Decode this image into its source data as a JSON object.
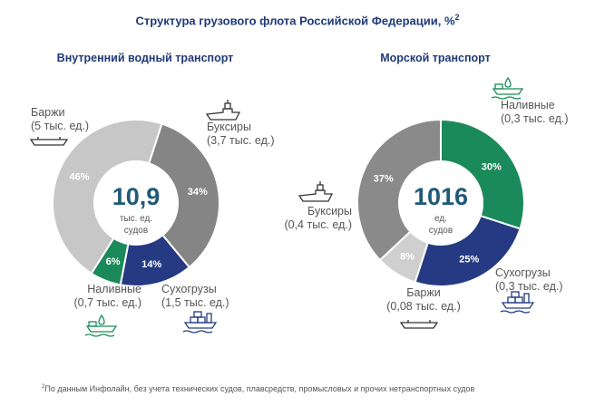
{
  "title": "Структура грузового флота Российской Федерации, %",
  "title_sup": "2",
  "footnote_sup": "2",
  "footnote": "По данным Инфолайн, без учета технических судов, плавсредств, промысловых и прочих нетранспортных судов",
  "colors": {
    "light_gray": "#c7c7c7",
    "dark_gray": "#858585",
    "mid_gray": "#8a8a8a",
    "pale_gray": "#cfcfcf",
    "navy": "#253a82",
    "green": "#1b8a5a",
    "title_blue": "#1f3a78",
    "center_text": "#215a78"
  },
  "chart_data": [
    {
      "type": "pie",
      "subtitle": "Внутренний водный транспорт",
      "center_value": "10,9",
      "center_unit_line1": "тыс. ед.",
      "center_unit_line2": "судов",
      "slices": [
        {
          "name": "Буксиры",
          "detail": "(3,7 тыс. ед.)",
          "value": 34,
          "label": "34%",
          "color": "#858585",
          "icon": "tugboat-icon"
        },
        {
          "name": "Сухогрузы",
          "detail": "(1,5 тыс. ед.)",
          "value": 14,
          "label": "14%",
          "color": "#253a82",
          "icon": "cargo-ship-icon"
        },
        {
          "name": "Наливные",
          "detail": "(0,7 тыс. ед.)",
          "value": 6,
          "label": "6%",
          "color": "#1b8a5a",
          "icon": "tanker-icon"
        },
        {
          "name": "Баржи",
          "detail": "(5 тыс. ед.)",
          "value": 46,
          "label": "46%",
          "color": "#c7c7c7",
          "icon": "barge-icon"
        }
      ]
    },
    {
      "type": "pie",
      "subtitle": "Морской транспорт",
      "center_value": "1016",
      "center_unit_line1": "ед.",
      "center_unit_line2": "судов",
      "slices": [
        {
          "name": "Наливные",
          "detail": "(0,3 тыс. ед.)",
          "value": 30,
          "label": "30%",
          "color": "#1b8a5a",
          "icon": "tanker-icon"
        },
        {
          "name": "Сухогрузы",
          "detail": "(0,3 тыс. ед.)",
          "value": 25,
          "label": "25%",
          "color": "#253a82",
          "icon": "cargo-ship-icon"
        },
        {
          "name": "Баржи",
          "detail": "(0,08 тыс. ед.)",
          "value": 8,
          "label": "8%",
          "color": "#cfcfcf",
          "icon": "barge-icon"
        },
        {
          "name": "Буксиры",
          "detail": "(0,4 тыс. ед.)",
          "value": 37,
          "label": "37%",
          "color": "#8a8a8a",
          "icon": "tugboat-icon"
        }
      ]
    }
  ]
}
